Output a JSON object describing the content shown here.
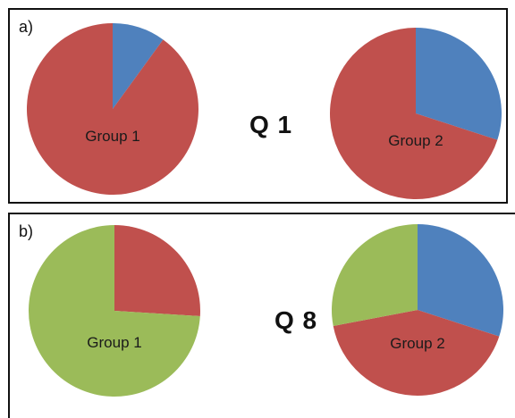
{
  "colors": {
    "blue": "#4f81bd",
    "red": "#c0504d",
    "green": "#9bbb59"
  },
  "chart_data": [
    {
      "panel": "a)",
      "question": "Q 1",
      "type": "pie",
      "charts": [
        {
          "label": "Group 1",
          "slices": [
            {
              "color": "blue",
              "value": 10
            },
            {
              "color": "red",
              "value": 90
            }
          ]
        },
        {
          "label": "Group 2",
          "slices": [
            {
              "color": "blue",
              "value": 30
            },
            {
              "color": "red",
              "value": 70
            }
          ]
        }
      ]
    },
    {
      "panel": "b)",
      "question": "Q 8",
      "type": "pie",
      "charts": [
        {
          "label": "Group 1",
          "slices": [
            {
              "color": "red",
              "value": 26
            },
            {
              "color": "green",
              "value": 74
            }
          ]
        },
        {
          "label": "Group 2",
          "slices": [
            {
              "color": "blue",
              "value": 30
            },
            {
              "color": "red",
              "value": 42
            },
            {
              "color": "green",
              "value": 28
            }
          ]
        }
      ]
    }
  ]
}
